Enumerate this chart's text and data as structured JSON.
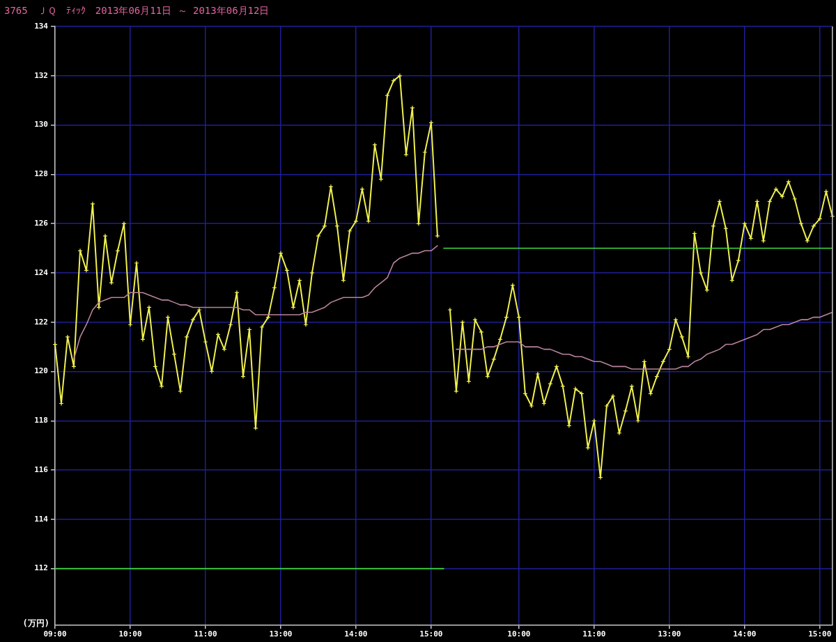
{
  "chart_data": {
    "type": "line",
    "title": "3765　ＪＱ　ﾃｨｯｸ　2013年06月11日 ～ 2013年06月12日",
    "ylabel": "(万円)",
    "categories": [
      "09:00",
      null,
      null,
      null,
      null,
      null,
      null,
      null,
      null,
      null,
      null,
      null,
      "10:00",
      null,
      null,
      null,
      null,
      null,
      null,
      null,
      null,
      null,
      null,
      null,
      "11:00",
      null,
      null,
      null,
      null,
      null,
      null,
      null,
      null,
      null,
      null,
      null,
      "13:00",
      null,
      null,
      null,
      null,
      null,
      null,
      null,
      null,
      null,
      null,
      null,
      "14:00",
      null,
      null,
      null,
      null,
      null,
      null,
      null,
      null,
      null,
      null,
      null,
      "15:00",
      null,
      null,
      null,
      null,
      null,
      null,
      null,
      null,
      null,
      null,
      null,
      null,
      null,
      "10:00",
      null,
      null,
      null,
      null,
      null,
      null,
      null,
      null,
      null,
      null,
      null,
      "11:00",
      null,
      null,
      null,
      null,
      null,
      null,
      null,
      null,
      null,
      null,
      null,
      "13:00",
      null,
      null,
      null,
      null,
      null,
      null,
      null,
      null,
      null,
      null,
      null,
      "14:00",
      null,
      null,
      null,
      null,
      null,
      null,
      null,
      null,
      null,
      null,
      null,
      "15:00",
      null,
      null
    ],
    "ylim": [
      109.7,
      134
    ],
    "yticks": [
      112,
      114,
      116,
      118,
      120,
      122,
      124,
      126,
      128,
      130,
      132,
      134
    ],
    "grid": true,
    "series": [
      {
        "color": "#f0f050",
        "marker": "cross",
        "values": [
          121.1,
          118.7,
          121.4,
          120.2,
          124.9,
          124.1,
          126.8,
          122.6,
          125.5,
          123.6,
          124.9,
          126.0,
          121.9,
          124.4,
          121.3,
          122.6,
          120.2,
          119.4,
          122.2,
          120.7,
          119.2,
          121.4,
          122.1,
          122.5,
          121.2,
          120.0,
          121.5,
          120.9,
          121.9,
          123.2,
          119.8,
          121.7,
          117.7,
          121.8,
          122.2,
          123.4,
          124.8,
          124.1,
          122.6,
          123.7,
          121.9,
          124.0,
          125.5,
          125.9,
          127.5,
          125.9,
          123.7,
          125.7,
          126.1,
          127.4,
          126.1,
          129.2,
          127.8,
          131.2,
          131.8,
          132.0,
          128.8,
          130.7,
          126.0,
          128.9,
          130.1,
          125.5,
          null,
          122.5,
          119.2,
          122.0,
          119.6,
          122.1,
          121.6,
          119.8,
          120.5,
          121.3,
          122.2,
          123.5,
          122.2,
          119.1,
          118.6,
          119.9,
          118.7,
          119.5,
          120.2,
          119.4,
          117.8,
          119.3,
          119.1,
          116.9,
          118.0,
          115.7,
          118.6,
          119.0,
          117.5,
          118.4,
          119.4,
          118.0,
          120.4,
          119.1,
          119.8,
          120.4,
          120.9,
          122.1,
          121.4,
          120.6,
          125.6,
          124.0,
          123.3,
          125.9,
          126.9,
          125.8,
          123.7,
          124.5,
          126.0,
          125.4,
          126.9,
          125.3,
          126.9,
          127.4,
          127.1,
          127.7,
          127.0,
          126.0,
          125.3,
          125.9,
          126.2,
          127.3,
          126.3
        ]
      },
      {
        "color": "#b8849c",
        "values": [
          null,
          null,
          null,
          120.5,
          121.4,
          121.9,
          122.5,
          122.8,
          122.9,
          123.0,
          123.0,
          123.0,
          123.2,
          123.2,
          123.2,
          123.1,
          123.0,
          122.9,
          122.9,
          122.8,
          122.7,
          122.7,
          122.6,
          122.6,
          122.6,
          122.6,
          122.6,
          122.6,
          122.6,
          122.6,
          122.5,
          122.5,
          122.3,
          122.3,
          122.3,
          122.3,
          122.3,
          122.3,
          122.3,
          122.3,
          122.4,
          122.4,
          122.5,
          122.6,
          122.8,
          122.9,
          123.0,
          123.0,
          123.0,
          123.0,
          123.1,
          123.4,
          123.6,
          123.8,
          124.4,
          124.6,
          124.7,
          124.8,
          124.8,
          124.9,
          124.9,
          125.1,
          null,
          null,
          120.9,
          120.9,
          120.9,
          120.9,
          120.9,
          121.0,
          121.0,
          121.1,
          121.2,
          121.2,
          121.2,
          121.0,
          121.0,
          121.0,
          120.9,
          120.9,
          120.8,
          120.7,
          120.7,
          120.6,
          120.6,
          120.5,
          120.4,
          120.4,
          120.3,
          120.2,
          120.2,
          120.2,
          120.1,
          120.1,
          120.1,
          120.1,
          120.1,
          120.1,
          120.1,
          120.1,
          120.2,
          120.2,
          120.4,
          120.5,
          120.7,
          120.8,
          120.9,
          121.1,
          121.1,
          121.2,
          121.3,
          121.4,
          121.5,
          121.7,
          121.7,
          121.8,
          121.9,
          121.9,
          122.0,
          122.1,
          122.1,
          122.2,
          122.2,
          122.3,
          122.4
        ]
      },
      {
        "color": "#40e040",
        "values": [
          112,
          112,
          112,
          112,
          112,
          112,
          112,
          112,
          112,
          112,
          112,
          112,
          112,
          112,
          112,
          112,
          112,
          112,
          112,
          112,
          112,
          112,
          112,
          112,
          112,
          112,
          112,
          112,
          112,
          112,
          112,
          112,
          112,
          112,
          112,
          112,
          112,
          112,
          112,
          112,
          112,
          112,
          112,
          112,
          112,
          112,
          112,
          112,
          112,
          112,
          112,
          112,
          112,
          112,
          112,
          112,
          112,
          112,
          112,
          112,
          112,
          112,
          112,
          null,
          null,
          null,
          null,
          null,
          null,
          null,
          null,
          null,
          null,
          null,
          null,
          null,
          null,
          null,
          null,
          null,
          null,
          null,
          null,
          null,
          null,
          null,
          null,
          null,
          null,
          null,
          null,
          null,
          null,
          null,
          null,
          null,
          null,
          null,
          null,
          null,
          null,
          null,
          null,
          null,
          null,
          null,
          null,
          null,
          null,
          null,
          null,
          null,
          null,
          null,
          null,
          null,
          null,
          null,
          null,
          null,
          null,
          null,
          null,
          null,
          null
        ]
      },
      {
        "color": "#40e040",
        "values": [
          null,
          null,
          null,
          null,
          null,
          null,
          null,
          null,
          null,
          null,
          null,
          null,
          null,
          null,
          null,
          null,
          null,
          null,
          null,
          null,
          null,
          null,
          null,
          null,
          null,
          null,
          null,
          null,
          null,
          null,
          null,
          null,
          null,
          null,
          null,
          null,
          null,
          null,
          null,
          null,
          null,
          null,
          null,
          null,
          null,
          null,
          null,
          null,
          null,
          null,
          null,
          null,
          null,
          null,
          null,
          null,
          null,
          null,
          null,
          null,
          null,
          null,
          125,
          125,
          125,
          125,
          125,
          125,
          125,
          125,
          125,
          125,
          125,
          125,
          125,
          125,
          125,
          125,
          125,
          125,
          125,
          125,
          125,
          125,
          125,
          125,
          125,
          125,
          125,
          125,
          125,
          125,
          125,
          125,
          125,
          125,
          125,
          125,
          125,
          125,
          125,
          125,
          125,
          125,
          125,
          125,
          125,
          125,
          125,
          125,
          125,
          125,
          125,
          125,
          125,
          125,
          125,
          125,
          125,
          125,
          125,
          125,
          125,
          125,
          125
        ]
      }
    ]
  }
}
